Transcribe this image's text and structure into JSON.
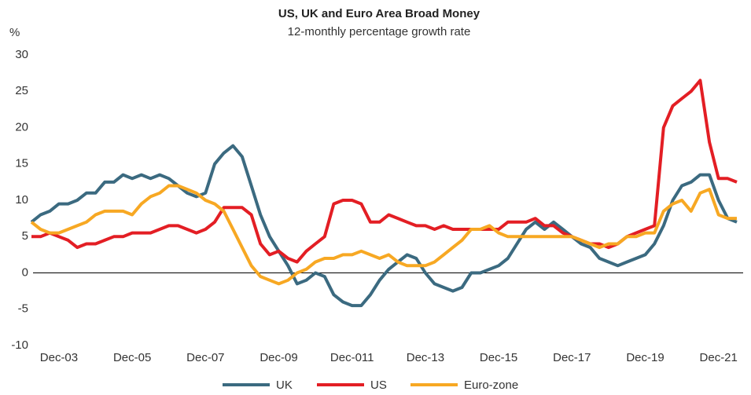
{
  "chart_data": {
    "type": "line",
    "title": "US, UK and Euro Area Broad Money",
    "subtitle": "12-monthly percentage growth rate",
    "y_label": "%",
    "categories": [
      null,
      null,
      null,
      "Dec-03",
      null,
      null,
      null,
      null,
      null,
      null,
      null,
      "Dec-05",
      null,
      null,
      null,
      null,
      null,
      null,
      null,
      "Dec-07",
      null,
      null,
      null,
      null,
      null,
      null,
      null,
      "Dec-09",
      null,
      null,
      null,
      null,
      null,
      null,
      null,
      "Dec-011",
      null,
      null,
      null,
      null,
      null,
      null,
      null,
      "Dec-13",
      null,
      null,
      null,
      null,
      null,
      null,
      null,
      "Dec-15",
      null,
      null,
      null,
      null,
      null,
      null,
      null,
      "Dec-17",
      null,
      null,
      null,
      null,
      null,
      null,
      null,
      "Dec-19",
      null,
      null,
      null,
      null,
      null,
      null,
      null,
      "Dec-21",
      null,
      null
    ],
    "series": [
      {
        "name": "UK",
        "color": "#3b6a80",
        "values": [
          7,
          8,
          8.5,
          9.5,
          9.5,
          10,
          11,
          11,
          12.5,
          12.5,
          13.5,
          13,
          13.5,
          13,
          13.5,
          13,
          12,
          11,
          10.5,
          11,
          15,
          16.5,
          17.5,
          16,
          12,
          8,
          5,
          3,
          1,
          -1.5,
          -1,
          0,
          -0.5,
          -3,
          -4,
          -4.5,
          -4.5,
          -3,
          -1,
          0.5,
          1.5,
          2.5,
          2,
          0,
          -1.5,
          -2,
          -2.5,
          -2,
          0,
          0,
          0.5,
          1,
          2,
          4,
          6,
          7,
          6,
          7,
          6,
          5,
          4,
          3.5,
          2,
          1.5,
          1,
          1.5,
          2,
          2.5,
          4,
          6.5,
          10,
          12,
          12.5,
          13.5,
          13.5,
          10,
          7.5,
          7
        ]
      },
      {
        "name": "US",
        "color": "#e31e24",
        "values": [
          5,
          5,
          5.5,
          5,
          4.5,
          3.5,
          4,
          4,
          4.5,
          5,
          5,
          5.5,
          5.5,
          5.5,
          6,
          6.5,
          6.5,
          6,
          5.5,
          6,
          7,
          9,
          9,
          9,
          8,
          4,
          2.5,
          3,
          2,
          1.5,
          3,
          4,
          5,
          9.5,
          10,
          10,
          9.5,
          7,
          7,
          8,
          7.5,
          7,
          6.5,
          6.5,
          6,
          6.5,
          6,
          6,
          6,
          6,
          6,
          6,
          7,
          7,
          7,
          7.5,
          6.5,
          6.5,
          5.5,
          5,
          4.5,
          4,
          4,
          3.5,
          4,
          5,
          5.5,
          6,
          6.5,
          20,
          23,
          24,
          25,
          26.5,
          18,
          13,
          13,
          12.5
        ]
      },
      {
        "name": "Euro-zone",
        "color": "#f7a823",
        "values": [
          7,
          6,
          5.5,
          5.5,
          6,
          6.5,
          7,
          8,
          8.5,
          8.5,
          8.5,
          8,
          9.5,
          10.5,
          11,
          12,
          12,
          11.5,
          11,
          10,
          9.5,
          8.5,
          6,
          3.5,
          1,
          -0.5,
          -1,
          -1.5,
          -1,
          0,
          0.5,
          1.5,
          2,
          2,
          2.5,
          2.5,
          3,
          2.5,
          2,
          2.5,
          1.5,
          1,
          1,
          1,
          1.5,
          2.5,
          3.5,
          4.5,
          6,
          6,
          6.5,
          5.5,
          5,
          5,
          5,
          5,
          5,
          5,
          5,
          5,
          4.5,
          4,
          3.5,
          4,
          4,
          5,
          5,
          5.5,
          5.5,
          8.5,
          9.5,
          10,
          8.5,
          11,
          11.5,
          8,
          7.5,
          7.5
        ]
      }
    ],
    "ylim": [
      -10,
      30
    ],
    "yticks": [
      -10,
      -5,
      0,
      5,
      10,
      15,
      20,
      25,
      30
    ],
    "legend": "bottom"
  }
}
